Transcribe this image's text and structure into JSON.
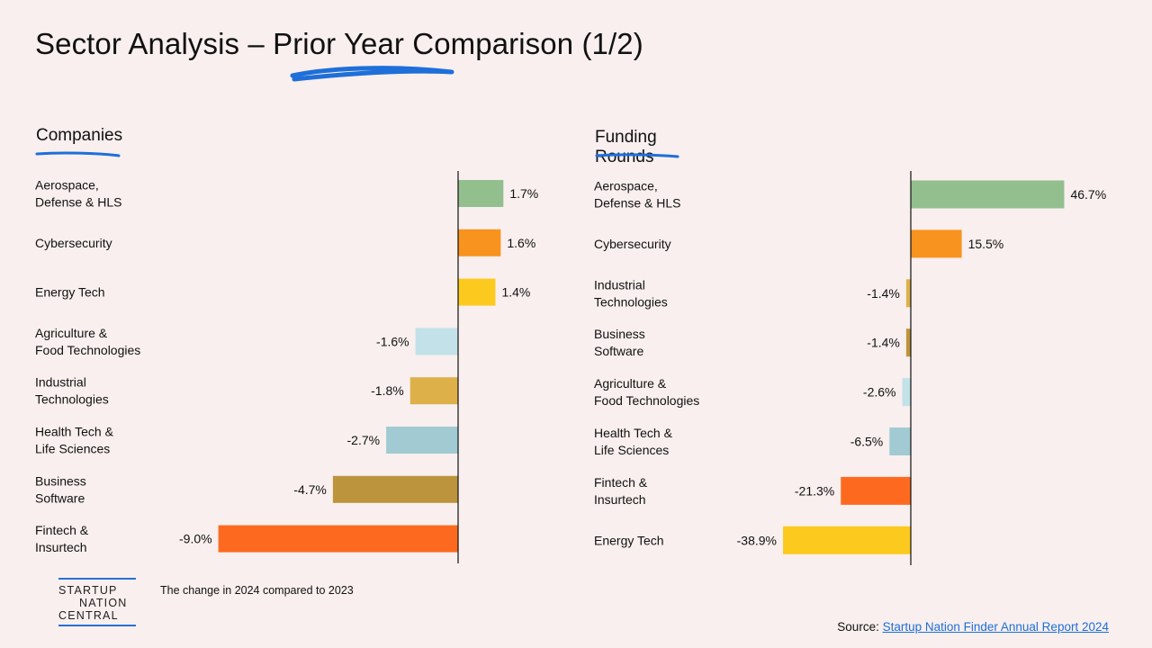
{
  "title": "Sector Analysis – Prior Year Comparison (1/2)",
  "footnote": "The change in 2024 compared to 2023",
  "logo": {
    "line1": "STARTUP",
    "line2": "NATION",
    "line3": "CENTRAL"
  },
  "source": {
    "prefix": "Source: ",
    "link_text": "Startup Nation Finder Annual Report 2024"
  },
  "colors": {
    "accent_underline": "#1e6fd9",
    "background": "#f8efee"
  },
  "chart_data": [
    {
      "type": "bar",
      "orientation": "horizontal",
      "title": "Companies",
      "categories": [
        [
          "Aerospace,",
          "Defense & HLS"
        ],
        [
          "Cybersecurity"
        ],
        [
          "Energy Tech"
        ],
        [
          "Agriculture &",
          "Food Technologies"
        ],
        [
          "Industrial",
          "Technologies"
        ],
        [
          "Health Tech &",
          "Life Sciences"
        ],
        [
          "Business",
          "Software"
        ],
        [
          "Fintech &",
          "Insurtech"
        ]
      ],
      "values": [
        1.7,
        1.6,
        1.4,
        -1.6,
        -1.8,
        -2.7,
        -4.7,
        -9.0
      ],
      "labels": [
        "1.7%",
        "1.6%",
        "1.4%",
        "-1.6%",
        "-1.8%",
        "-2.7%",
        "-4.7%",
        "-9.0%"
      ],
      "colors": [
        "#93bf8e",
        "#f7931e",
        "#fcca1e",
        "#c3e1e8",
        "#ddb04a",
        "#a1cad3",
        "#bd943e",
        "#fd6a1f"
      ],
      "xlim": [
        -9.0,
        1.7
      ]
    },
    {
      "type": "bar",
      "orientation": "horizontal",
      "title": "Funding Rounds",
      "categories": [
        [
          "Aerospace,",
          "Defense & HLS"
        ],
        [
          "Cybersecurity"
        ],
        [
          "Industrial",
          "Technologies"
        ],
        [
          "Business",
          "Software"
        ],
        [
          "Agriculture &",
          "Food Technologies"
        ],
        [
          "Health Tech &",
          "Life Sciences"
        ],
        [
          "Fintech &",
          "Insurtech"
        ],
        [
          "Energy Tech"
        ]
      ],
      "values": [
        46.7,
        15.5,
        -1.4,
        -1.4,
        -2.6,
        -6.5,
        -21.3,
        -38.9
      ],
      "labels": [
        "46.7%",
        "15.5%",
        "-1.4%",
        "-1.4%",
        "-2.6%",
        "-6.5%",
        "-21.3%",
        "-38.9%"
      ],
      "colors": [
        "#93bf8e",
        "#f7931e",
        "#ddb04a",
        "#bd943e",
        "#c3e1e8",
        "#a1cad3",
        "#fd6a1f",
        "#fcca1e"
      ],
      "xlim": [
        -38.9,
        46.7
      ]
    }
  ]
}
